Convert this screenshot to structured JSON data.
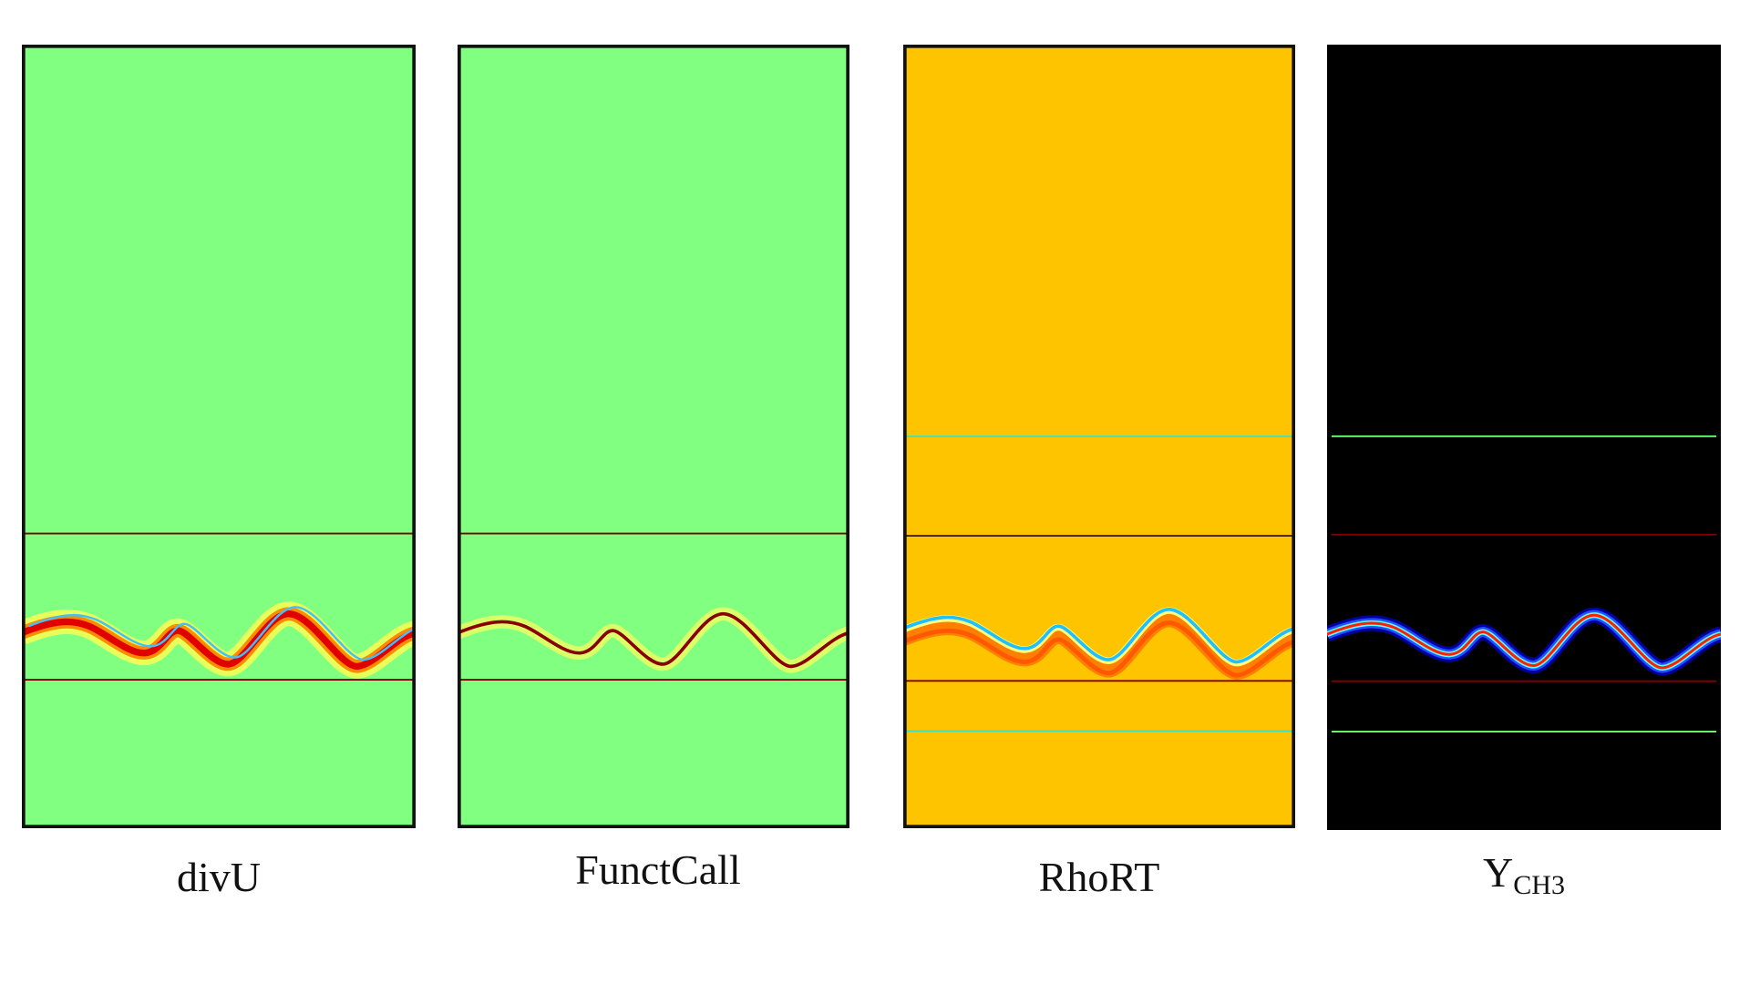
{
  "panels": [
    {
      "label": "divU"
    },
    {
      "label": "FunctCall"
    },
    {
      "label": "RhoRT"
    },
    {
      "label": "Y",
      "subscript": "CH3"
    }
  ]
}
